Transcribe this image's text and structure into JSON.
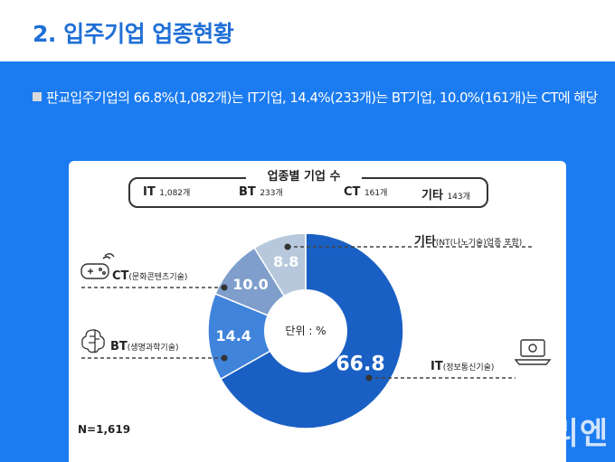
{
  "header": {
    "title": "2. 입주기업 업종현황"
  },
  "summary": {
    "text": "판교입주기업의 66.8%(1,082개)는 IT기업, 14.4%(233개)는 BT기업, 10.0%(161개)는 CT에 해당"
  },
  "legend": {
    "title": "업종별 기업 수",
    "items": [
      {
        "name": "IT",
        "count": "1,082개"
      },
      {
        "name": "BT",
        "count": "233개"
      },
      {
        "name": "CT",
        "count": "161개"
      },
      {
        "name": "기타",
        "count": "143개"
      }
    ]
  },
  "chart_data": {
    "type": "pie",
    "center_label": "단위 : %",
    "categories": [
      "IT",
      "BT",
      "CT",
      "기타"
    ],
    "values": [
      66.8,
      14.4,
      10.0,
      8.8
    ],
    "value_labels": [
      "66.8",
      "14.4",
      "10.0",
      "8.8"
    ],
    "category_labels": [
      {
        "main": "IT",
        "sub": "(정보통신기술)"
      },
      {
        "main": "BT",
        "sub": "(생명과학기술)"
      },
      {
        "main": "CT",
        "sub": "(문화콘텐츠기술)"
      },
      {
        "main": "기타",
        "sub": "(NT(나노기술)업종 포함)"
      }
    ],
    "colors": [
      "#1a60c4",
      "#3f83db",
      "#7f9ecc",
      "#b8c8dc"
    ],
    "total_label": "N=1,619"
  },
  "watermark": "데일리엔",
  "icons": {
    "it": "laptop-icon",
    "bt": "brain-circuit-icon",
    "ct": "gamepad-icon"
  },
  "colors": {
    "accent": "#1b7bf0",
    "title": "#1f6fd6"
  }
}
